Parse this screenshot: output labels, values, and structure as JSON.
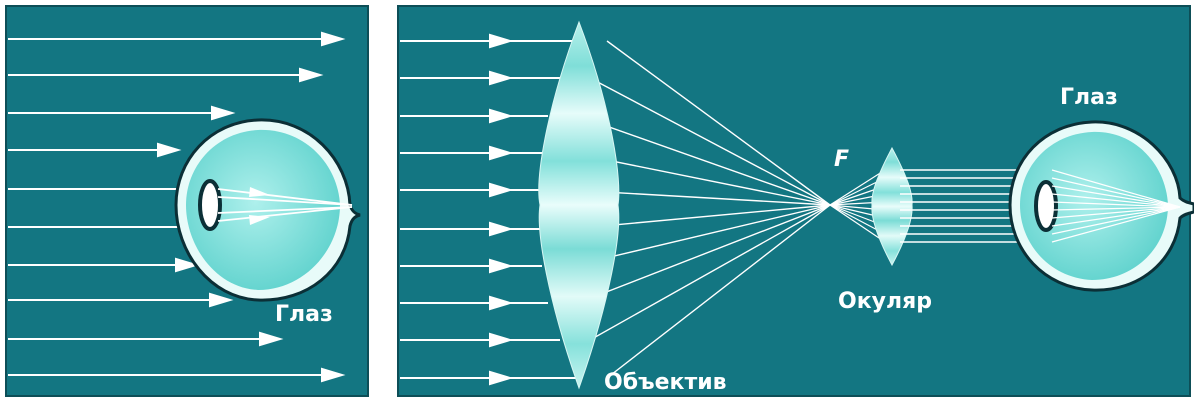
{
  "colors": {
    "background": "#137682",
    "ray": "#ffffff",
    "eye_fill": "#7fe0dc",
    "eye_outline": "#0b2f36",
    "lens_light": "#dffaf7",
    "lens_mid": "#7de0da"
  },
  "panels": {
    "left": {
      "eye_label": "Глаз"
    },
    "right": {
      "objective_label": "Объектив",
      "focus_label": "F",
      "eyepiece_label": "Окуляр",
      "eye_label": "Глаз"
    }
  }
}
